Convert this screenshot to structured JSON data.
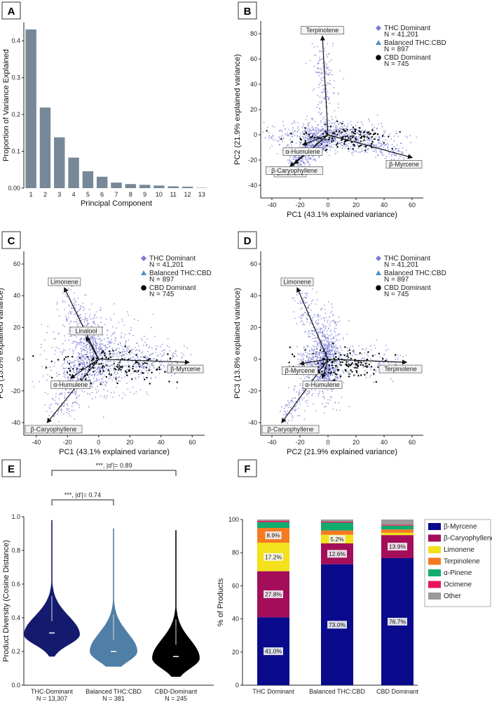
{
  "chart_data": [
    {
      "panel": "A",
      "type": "bar",
      "xlabel": "Principal Component",
      "ylabel": "Proportion of Variance Explained",
      "categories": [
        "1",
        "2",
        "3",
        "4",
        "5",
        "6",
        "7",
        "8",
        "9",
        "10",
        "11",
        "12",
        "13"
      ],
      "values": [
        0.431,
        0.219,
        0.138,
        0.083,
        0.046,
        0.031,
        0.015,
        0.011,
        0.009,
        0.007,
        0.005,
        0.004,
        0.001
      ],
      "yticks": [
        "0.00",
        "0.1",
        "0.2",
        "0.3",
        "0.4"
      ],
      "ylim": [
        0,
        0.45
      ],
      "bar_color": "#778899"
    },
    {
      "panel": "B",
      "type": "scatter",
      "xlabel": "PC1 (43.1% explained variance)",
      "ylabel": "PC2 (21.9% explained variance)",
      "xticks": [
        "-40",
        "-20",
        "0",
        "20",
        "40",
        "60"
      ],
      "yticks": [
        "-40",
        "-20",
        "0",
        "20",
        "40",
        "60",
        "80"
      ],
      "xlim": [
        -48,
        68
      ],
      "ylim": [
        -50,
        90
      ],
      "legend": [
        {
          "name": "THC Dominant",
          "n": "N = 41,201",
          "color": "#7b7bd8",
          "marker": "diamond"
        },
        {
          "name": "Balanced THC:CBD",
          "n": "N = 897",
          "color": "#4a90c8",
          "marker": "triangle"
        },
        {
          "name": "CBD Dominant",
          "n": "N = 745",
          "color": "#000000",
          "marker": "circle"
        }
      ],
      "loadings": [
        {
          "label": "Terpinolene",
          "x": -4,
          "y": 78
        },
        {
          "label": "α-Humulene",
          "x": -18,
          "y": -8
        },
        {
          "label": "Limonene",
          "x": -27,
          "y": -25
        },
        {
          "label": "β-Caryophyllene",
          "x": -24,
          "y": -23
        },
        {
          "label": "β-Myrcene",
          "x": 60,
          "y": -18
        }
      ]
    },
    {
      "panel": "C",
      "type": "scatter",
      "xlabel": "PC1 (43.1% explained variance)",
      "ylabel": "PC3 (13.8% explained variance)",
      "xticks": [
        "-40",
        "-20",
        "0",
        "20",
        "40",
        "60"
      ],
      "yticks": [
        "-40",
        "-20",
        "0",
        "20",
        "40",
        "60"
      ],
      "xlim": [
        -48,
        68
      ],
      "ylim": [
        -48,
        68
      ],
      "legend": [
        {
          "name": "THC Dominant",
          "n": "N = 41,201",
          "color": "#7b7bd8",
          "marker": "diamond"
        },
        {
          "name": "Balanced THC:CBD",
          "n": "N = 897",
          "color": "#4a90c8",
          "marker": "triangle"
        },
        {
          "name": "CBD Dominant",
          "n": "N = 745",
          "color": "#000000",
          "marker": "circle"
        }
      ],
      "loadings": [
        {
          "label": "Limonene",
          "x": -22,
          "y": 45
        },
        {
          "label": "Linalool",
          "x": -8,
          "y": 14
        },
        {
          "label": "α-Humulene",
          "x": -18,
          "y": -12
        },
        {
          "label": "β-Caryophyllene",
          "x": -33,
          "y": -40
        },
        {
          "label": "β-Myrcene",
          "x": 58,
          "y": -2
        }
      ]
    },
    {
      "panel": "D",
      "type": "scatter",
      "xlabel": "PC2 (21.9% explained variance)",
      "ylabel": "PC3 (13.8% explained variance)",
      "xticks": [
        "-40",
        "-20",
        "0",
        "20",
        "40",
        "60"
      ],
      "yticks": [
        "-40",
        "-20",
        "0",
        "20",
        "40",
        "60"
      ],
      "xlim": [
        -48,
        68
      ],
      "ylim": [
        -48,
        68
      ],
      "legend": [
        {
          "name": "THC Dominant",
          "n": "N = 41,201",
          "color": "#7b7bd8",
          "marker": "diamond"
        },
        {
          "name": "Balanced THC:CBD",
          "n": "N = 897",
          "color": "#4a90c8",
          "marker": "triangle"
        },
        {
          "name": "CBD Dominant",
          "n": "N = 745",
          "color": "#000000",
          "marker": "circle"
        }
      ],
      "loadings": [
        {
          "label": "Limonene",
          "x": -22,
          "y": 45
        },
        {
          "label": "β-Myrcene",
          "x": -20,
          "y": -3
        },
        {
          "label": "α-Humulene",
          "x": -4,
          "y": -12
        },
        {
          "label": "β-Caryophyllene",
          "x": -33,
          "y": -40
        },
        {
          "label": "Terpinolene",
          "x": 56,
          "y": -2
        }
      ]
    },
    {
      "panel": "E",
      "type": "violin",
      "ylabel": "Product Diversity (Cosine Distance)",
      "ylim": [
        0,
        1.0
      ],
      "yticks": [
        "0.0",
        "0.2",
        "0.4",
        "0.6",
        "0.8",
        "1.0"
      ],
      "groups": [
        {
          "name": "THC-Dominant",
          "n": "N = 13,307",
          "color": "#141a6e",
          "median": 0.31,
          "min": 0.17,
          "max": 0.98,
          "mode": 0.3,
          "width": 1.0
        },
        {
          "name": "Balanced THC:CBD",
          "n": "N = 381",
          "color": "#4f7fa7",
          "median": 0.2,
          "min": 0.11,
          "max": 0.93,
          "mode": 0.2,
          "width": 0.85
        },
        {
          "name": "CBD-Dominant",
          "n": "N = 245",
          "color": "#000000",
          "median": 0.17,
          "min": 0.05,
          "max": 0.92,
          "mode": 0.16,
          "width": 0.85
        }
      ],
      "annotations": [
        {
          "text": "***, |d′|= 0.89",
          "from": 0,
          "to": 2
        },
        {
          "text": "***, |d′|= 0.74",
          "from": 0,
          "to": 1
        }
      ]
    },
    {
      "panel": "F",
      "type": "stacked_bar",
      "ylabel": "% of Products",
      "ylim": [
        0,
        100
      ],
      "yticks": [
        "0",
        "20",
        "40",
        "60",
        "80",
        "100"
      ],
      "categories": [
        "THC Dominant",
        "Balanced THC:CBD",
        "CBD Dominant"
      ],
      "series": [
        {
          "name": "β-Myrcene",
          "color": "#0a0a8c",
          "values": [
            41.0,
            73.0,
            76.7
          ],
          "labels": [
            "41.0%",
            "73.0%",
            "76.7%"
          ]
        },
        {
          "name": "β-Caryophyllene",
          "color": "#a30d5a",
          "values": [
            27.8,
            12.6,
            13.9
          ],
          "labels": [
            "27.8%",
            "12.6%",
            "13.9%"
          ]
        },
        {
          "name": "Limonene",
          "color": "#f2e11b",
          "values": [
            17.2,
            5.2,
            1.4
          ],
          "labels": [
            "17.2%",
            "5.2%",
            ""
          ]
        },
        {
          "name": "Terpinolene",
          "color": "#f57a22",
          "values": [
            8.9,
            2.6,
            2.0
          ],
          "labels": [
            "8.9%",
            "",
            ""
          ]
        },
        {
          "name": "α-Pinene",
          "color": "#10ad6e",
          "values": [
            3.5,
            4.7,
            2.3
          ],
          "labels": [
            "",
            "",
            ""
          ]
        },
        {
          "name": "Ocimene",
          "color": "#e8145a",
          "values": [
            0.8,
            0.6,
            0.6
          ],
          "labels": [
            "",
            "",
            ""
          ]
        },
        {
          "name": "Other",
          "color": "#9a9a9a",
          "values": [
            0.8,
            1.3,
            3.1
          ],
          "labels": [
            "",
            "",
            ""
          ]
        }
      ]
    }
  ]
}
